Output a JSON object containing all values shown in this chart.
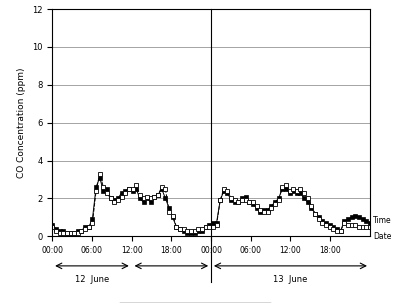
{
  "title": "",
  "ylabel": "CO Concentration (ppm)",
  "xlabel_time": "Time",
  "xlabel_date": "Date",
  "ylim": [
    0,
    12
  ],
  "yticks": [
    0,
    2,
    4,
    6,
    8,
    10,
    12
  ],
  "background_color": "#f0f0f0",
  "measured_color": "#000000",
  "estimated_color": "#000000",
  "x_tick_labels": [
    "00:00",
    "06:00",
    "12:00",
    "18:00",
    "00:00",
    "06:00",
    "12:00",
    "18:00"
  ],
  "x_tick_positions": [
    0,
    6,
    12,
    18,
    24,
    30,
    36,
    42
  ],
  "measured": [
    0.6,
    0.4,
    0.3,
    0.3,
    0.2,
    0.2,
    0.2,
    0.3,
    0.3,
    0.5,
    0.5,
    0.9,
    2.6,
    3.1,
    2.4,
    2.5,
    2.0,
    1.9,
    2.0,
    2.3,
    2.4,
    2.5,
    2.4,
    2.5,
    2.0,
    1.8,
    2.0,
    1.8,
    2.1,
    2.2,
    2.5,
    2.0,
    1.5,
    1.0,
    0.5,
    0.4,
    0.3,
    0.2,
    0.2,
    0.2,
    0.3,
    0.3,
    0.5,
    0.6,
    0.7,
    0.7,
    1.9,
    2.4,
    2.3,
    1.9,
    1.8,
    1.8,
    2.0,
    2.1,
    1.8,
    1.7,
    1.5,
    1.3,
    1.4,
    1.4,
    1.6,
    1.8,
    2.0,
    2.5,
    2.5,
    2.3,
    2.4,
    2.3,
    2.3,
    2.0,
    1.8,
    1.5,
    1.2,
    1.0,
    0.8,
    0.7,
    0.6,
    0.5,
    0.4,
    0.3,
    0.8,
    0.9,
    1.0,
    1.1,
    1.0,
    0.9,
    0.8,
    0.7
  ],
  "estimated": [
    0.5,
    0.3,
    0.2,
    0.2,
    0.2,
    0.2,
    0.2,
    0.2,
    0.3,
    0.4,
    0.5,
    0.7,
    2.4,
    3.3,
    2.6,
    2.3,
    2.0,
    1.8,
    1.9,
    2.1,
    2.3,
    2.5,
    2.5,
    2.7,
    2.2,
    2.0,
    2.1,
    2.0,
    2.1,
    2.2,
    2.6,
    2.5,
    1.3,
    1.1,
    0.5,
    0.4,
    0.4,
    0.3,
    0.3,
    0.3,
    0.4,
    0.4,
    0.5,
    0.5,
    0.5,
    0.6,
    1.9,
    2.5,
    2.4,
    2.0,
    1.9,
    1.8,
    1.9,
    1.9,
    1.8,
    1.8,
    1.6,
    1.4,
    1.3,
    1.3,
    1.5,
    1.7,
    1.9,
    2.6,
    2.7,
    2.4,
    2.5,
    2.4,
    2.5,
    2.3,
    2.0,
    1.6,
    1.2,
    0.9,
    0.7,
    0.6,
    0.5,
    0.4,
    0.3,
    0.3,
    0.7,
    0.6,
    0.6,
    0.6,
    0.5,
    0.5,
    0.5,
    0.5
  ]
}
